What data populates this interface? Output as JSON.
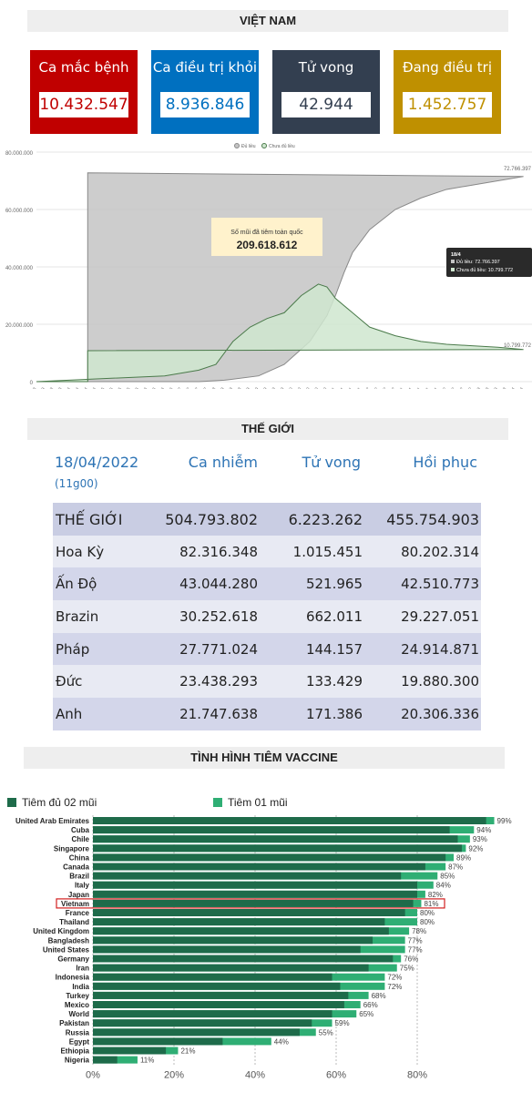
{
  "vietnam": {
    "title": "VIỆT NAM",
    "cards": [
      {
        "label": "Ca mắc bệnh",
        "value": "10.432.547",
        "color": "#c00000",
        "text_color": "#c00000"
      },
      {
        "label": "Ca điều trị khỏi",
        "value": "8.936.846",
        "color": "#0070c0",
        "text_color": "#0070c0"
      },
      {
        "label": "Tử vong",
        "value": "42.944",
        "color": "#333f50",
        "text_color": "#333f50"
      },
      {
        "label": "Đang điều trị",
        "value": "1.452.757",
        "color": "#bf9000",
        "text_color": "#bf9000"
      }
    ]
  },
  "vaccination_chart": {
    "legend": [
      "Đủ liều",
      "Chưa đủ liều"
    ],
    "callout_label": "Số mũi đã tiêm toàn quốc",
    "callout_value": "209.618.612",
    "tooltip_date": "18/4",
    "tooltip_full": "Đủ liều: 72.766.397",
    "tooltip_partial": "Chưa đủ liều: 10.799.772",
    "end_label_full": "72.766.397",
    "end_label_partial": "10.799.772",
    "y_ticks": [
      "80.000.000",
      "60.000.000",
      "40.000.000",
      "20.000.000",
      "0"
    ],
    "x_ticks": [
      "7/3",
      "14/3",
      "21/3",
      "28/3",
      "4/4",
      "11/4",
      "18/4",
      "25/4",
      "2/5",
      "9/5",
      "16/5",
      "23/5",
      "30/5",
      "6/6",
      "13/6",
      "20/6",
      "27/6",
      "4/7",
      "11/7",
      "18/7",
      "25/7",
      "1/8",
      "8/8",
      "15/8",
      "22/8",
      "29/8",
      "5/9",
      "12/9",
      "19/9",
      "26/9",
      "3/10",
      "10/10",
      "17/10",
      "24/10",
      "31/10",
      "7/11",
      "14/11",
      "21/11",
      "28/11",
      "5/12",
      "12/12",
      "19/12",
      "26/12",
      "2/1",
      "9/1",
      "16/1",
      "23/1",
      "30/1",
      "6/2",
      "13/2",
      "20/2",
      "27/2",
      "6/3",
      "13/3",
      "20/3",
      "27/3",
      "3/4",
      "10/4"
    ],
    "colors": {
      "full": "#c4c4c4",
      "partial": "#cfe6cf",
      "full_line": "#888888",
      "partial_line": "#4a7a4a"
    }
  },
  "chart_data": [
    {
      "type": "area",
      "legend": [
        "Đủ liều",
        "Chưa đủ liều"
      ],
      "ylim": [
        0,
        80000000
      ],
      "series": [
        {
          "name": "Đủ liều",
          "x": [
            "7/3",
            "18/7",
            "8/8",
            "5/9",
            "26/9",
            "17/10",
            "31/10",
            "7/11",
            "14/11",
            "21/11",
            "5/12",
            "26/12",
            "16/1",
            "6/2",
            "27/2",
            "20/3",
            "10/4",
            "18/4"
          ],
          "values": [
            0,
            0,
            500000,
            2000000,
            6000000,
            14000000,
            23000000,
            30000000,
            38000000,
            45000000,
            53000000,
            60000000,
            64000000,
            67000000,
            68500000,
            70000000,
            71500000,
            72766397
          ]
        },
        {
          "name": "Chưa đủ liều",
          "x": [
            "7/3",
            "20/6",
            "18/7",
            "1/8",
            "15/8",
            "29/8",
            "12/9",
            "26/9",
            "10/10",
            "24/10",
            "31/10",
            "7/11",
            "21/11",
            "5/12",
            "26/12",
            "16/1",
            "6/2",
            "27/2",
            "20/3",
            "10/4",
            "18/4"
          ],
          "values": [
            0,
            2000000,
            4000000,
            6000000,
            14000000,
            19000000,
            22000000,
            24000000,
            30000000,
            34000000,
            33000000,
            29000000,
            24000000,
            19000000,
            16000000,
            14000000,
            13000000,
            12500000,
            12000000,
            11200000,
            10799772
          ]
        }
      ]
    },
    {
      "type": "bar",
      "title": "TÌNH HÌNH TIÊM VACCINE",
      "categories": [
        "United Arab Emirates",
        "Cuba",
        "Chile",
        "Singapore",
        "China",
        "Canada",
        "Brazil",
        "Italy",
        "Japan",
        "Vietnam",
        "France",
        "Thailand",
        "United Kingdom",
        "Bangladesh",
        "United States",
        "Germany",
        "Iran",
        "Indonesia",
        "India",
        "Turkey",
        "Mexico",
        "World",
        "Pakistan",
        "Russia",
        "Egypt",
        "Ethiopia",
        "Nigeria"
      ],
      "series": [
        {
          "name": "Tiêm đủ 02 mũi",
          "values": [
            97,
            88,
            90,
            91,
            87,
            82,
            76,
            80,
            80,
            79,
            77,
            72,
            73,
            69,
            66,
            74,
            68,
            59,
            61,
            63,
            62,
            59,
            54,
            51,
            32,
            18,
            6
          ]
        },
        {
          "name": "Tiêm 01 mũi",
          "values": [
            99,
            94,
            93,
            92,
            89,
            87,
            85,
            84,
            82,
            81,
            80,
            80,
            78,
            77,
            77,
            76,
            75,
            72,
            72,
            68,
            66,
            65,
            59,
            55,
            44,
            21,
            11
          ]
        }
      ],
      "labels": [
        "99%",
        "94%",
        "93%",
        "92%",
        "89%",
        "87%",
        "85%",
        "84%",
        "82%",
        "81%",
        "80%",
        "80%",
        "78%",
        "77%",
        "77%",
        "76%",
        "75%",
        "72%",
        "72%",
        "68%",
        "66%",
        "65%",
        "59%",
        "55%",
        "44%",
        "21%",
        "11%"
      ],
      "highlight": "Vietnam",
      "x_ticks": [
        "0%",
        "20%",
        "40%",
        "60%",
        "80%"
      ],
      "xlim": [
        0,
        100
      ],
      "colors": {
        "full": "#1e6b4a",
        "partial": "#2fae74"
      }
    }
  ],
  "world": {
    "title": "THẾ GIỚI",
    "date": "18/04/2022",
    "time": "(11g00)",
    "headers": [
      "Ca nhiễm",
      "Tử vong",
      "Hồi phục"
    ],
    "rows": [
      {
        "name": "THẾ GIỚI",
        "cases": "504.793.802",
        "deaths": "6.223.262",
        "recovered": "455.754.903"
      },
      {
        "name": "Hoa Kỳ",
        "cases": "82.316.348",
        "deaths": "1.015.451",
        "recovered": "80.202.314"
      },
      {
        "name": "Ấn Độ",
        "cases": "43.044.280",
        "deaths": "521.965",
        "recovered": "42.510.773"
      },
      {
        "name": "Brazin",
        "cases": "30.252.618",
        "deaths": "662.011",
        "recovered": "29.227.051"
      },
      {
        "name": "Pháp",
        "cases": "27.771.024",
        "deaths": "144.157",
        "recovered": "24.914.871"
      },
      {
        "name": "Đức",
        "cases": "23.438.293",
        "deaths": "133.429",
        "recovered": "19.880.300"
      },
      {
        "name": "Anh",
        "cases": "21.747.638",
        "deaths": "171.386",
        "recovered": "20.306.336"
      }
    ]
  },
  "vaccine": {
    "title": "TÌNH HÌNH TIÊM VACCINE",
    "legend_full": "Tiêm đủ 02 mũi",
    "legend_partial": "Tiêm 01 mũi"
  }
}
